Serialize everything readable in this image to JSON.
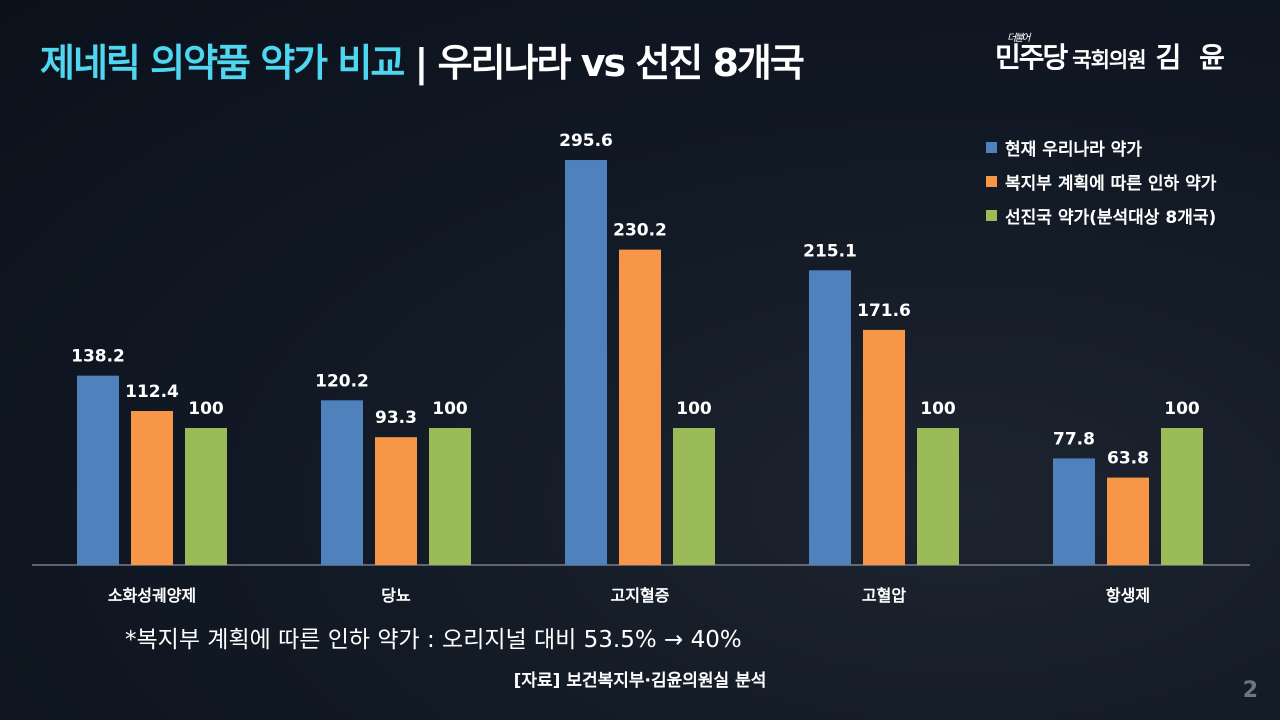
{
  "title": {
    "highlight": "제네릭 의약품 약가 비교",
    "rest": "| 우리나라 vs 선진 8개국"
  },
  "logo": {
    "party_small": "더불어",
    "party": "민주당",
    "role": "국회의원",
    "name": "김 윤"
  },
  "chart_data": {
    "type": "bar",
    "categories": [
      "소화성궤양제",
      "당뇨",
      "고지혈증",
      "고혈압",
      "항생제"
    ],
    "series": [
      {
        "name": "현재 우리나라 약가",
        "color": "#4f81bd",
        "values": [
          138.2,
          120.2,
          295.6,
          215.1,
          77.8
        ]
      },
      {
        "name": "복지부 계획에 따른 인하 약가",
        "color": "#f79646",
        "values": [
          112.4,
          93.3,
          230.2,
          171.6,
          63.8
        ]
      },
      {
        "name": "선진국 약가(분석대상 8개국)",
        "color": "#9bbb59",
        "values": [
          100,
          100,
          100,
          100,
          100
        ]
      }
    ],
    "ylim": [
      0,
      300
    ],
    "grid": false,
    "legend": "top-right",
    "data_labels": true
  },
  "note": "*복지부 계획에 따른 인하 약가 : 오리지널 대비 53.5% → 40%",
  "source": "[자료] 보건복지부·김윤의원실 분석",
  "page_number": "2"
}
